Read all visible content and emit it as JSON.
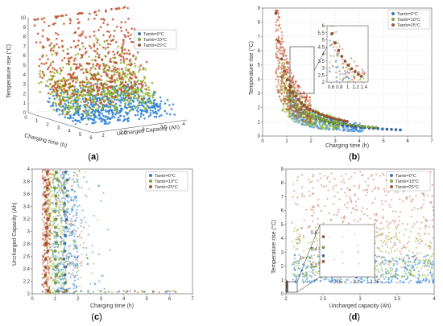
{
  "series_colors": {
    "0C": "#2a7fd4",
    "10C": "#8fb92c",
    "25C": "#c0502a"
  },
  "legend_labels": [
    "Tamb=0°C",
    "Tamb=10°C",
    "Tamb=25°C"
  ],
  "captions": {
    "a": {
      "open": "(",
      "letter": "a",
      "close": ")"
    },
    "b": {
      "open": "(",
      "letter": "b",
      "close": ")"
    },
    "c": {
      "open": "(",
      "letter": "c",
      "close": ")"
    },
    "d": {
      "open": "(",
      "letter": "d",
      "close": ")"
    }
  },
  "panel_a": {
    "zlabel": "Temperature rise (°C)",
    "xlabel": "Charging time (h)",
    "ylabel": "Uncharged Capacity (Ah)",
    "zticks": [
      "0",
      "1",
      "2",
      "3",
      "4",
      "5",
      "6",
      "7",
      "8",
      "9",
      "10"
    ],
    "xticks": [
      "0",
      "1",
      "2",
      "3",
      "4",
      "5",
      "6"
    ],
    "yticks": [
      "2",
      "2.5",
      "3",
      "3.5",
      "4"
    ]
  },
  "panel_b": {
    "xticks": [
      "0",
      "1",
      "2",
      "3",
      "4",
      "5",
      "6",
      "7"
    ],
    "yticks": [
      "0",
      "1",
      "2",
      "3",
      "4",
      "5",
      "6",
      "7",
      "8",
      "9"
    ],
    "inset_xticks": [
      "0.6",
      "0.8",
      "1",
      "1.2",
      "1.4"
    ],
    "inset_yticks": [
      "2",
      "2.5",
      "3",
      "3.5",
      "4",
      "4.5",
      "5",
      "5.5",
      "6"
    ]
  },
  "panel_c": {
    "xticks": [
      "0",
      "1",
      "2",
      "3",
      "4",
      "5",
      "6",
      "7"
    ],
    "yticks": [
      "2",
      "2.2",
      "2.4",
      "2.6",
      "2.8",
      "3",
      "3.2",
      "3.4",
      "3.6",
      "3.8",
      "4"
    ]
  },
  "panel_d": {
    "xticks": [
      "2",
      "2.5",
      "3",
      "3.5",
      "4"
    ],
    "yticks": [
      "0",
      "1",
      "2",
      "3",
      "4",
      "5",
      "6",
      "7",
      "8",
      "9"
    ],
    "inset_xticks": [
      "2.05",
      "2.1",
      "2.15"
    ],
    "inset_yticks": [
      "0.2",
      "0.4",
      "0.6"
    ]
  },
  "chart_data": [
    {
      "panel": "a",
      "type": "scatter",
      "title": "",
      "xlabel": "Charging time (h)",
      "ylabel": "Uncharged Capacity (Ah)",
      "zlabel": "Temperature rise (°C)",
      "xlim": [
        0,
        6
      ],
      "ylim": [
        2,
        4
      ],
      "zlim": [
        0,
        10
      ],
      "grid": true,
      "legend_position": "top-right",
      "series": [
        {
          "name": "Tamb=0°C",
          "x": [
            1.5,
            2,
            2.5,
            3,
            4
          ],
          "y": [
            2.5,
            3,
            3.5,
            3,
            2.5
          ],
          "z": [
            1,
            2,
            3,
            2.5,
            1.5
          ]
        },
        {
          "name": "Tamb=10°C",
          "x": [
            1,
            1.5,
            2,
            3
          ],
          "y": [
            2.5,
            3,
            3.5,
            3
          ],
          "z": [
            2,
            4,
            5,
            3.5
          ]
        },
        {
          "name": "Tamb=25°C",
          "x": [
            0.6,
            1,
            1.5,
            2
          ],
          "y": [
            2.5,
            3,
            3.5,
            3
          ],
          "z": [
            3,
            6,
            8,
            9
          ]
        }
      ]
    },
    {
      "panel": "b",
      "type": "scatter",
      "title": "",
      "xlabel": "Charging time (h)",
      "ylabel": "Temperature rise (°C)",
      "xlim": [
        0,
        7
      ],
      "ylim": [
        0,
        9
      ],
      "grid": true,
      "legend_position": "top-right",
      "series": [
        {
          "name": "Tamb=0°C",
          "x": [
            1.2,
            1.5,
            2,
            3,
            4,
            5,
            5.5
          ],
          "y": [
            2.7,
            2.0,
            1.4,
            0.8,
            0.5,
            0.35,
            0.3
          ]
        },
        {
          "name": "Tamb=10°C",
          "x": [
            0.9,
            1.1,
            1.5,
            2,
            3,
            4.5,
            6.2
          ],
          "y": [
            5,
            3.3,
            2.0,
            1.3,
            0.7,
            0.4,
            0.25
          ]
        },
        {
          "name": "Tamb=25°C",
          "x": [
            0.6,
            0.7,
            0.8,
            1,
            1.2,
            1.4
          ],
          "y": [
            8.6,
            6.5,
            4.8,
            3.2,
            2.5,
            2.0
          ]
        }
      ],
      "inset": {
        "xlim": [
          0.5,
          1.5
        ],
        "ylim": [
          2,
          6
        ]
      }
    },
    {
      "panel": "c",
      "type": "scatter",
      "title": "",
      "xlabel": "Charging time (h)",
      "ylabel": "Uncharged Capacity (Ah)",
      "xlim": [
        0,
        7
      ],
      "ylim": [
        2,
        4
      ],
      "grid": false,
      "legend_position": "top-right",
      "series": [
        {
          "name": "Tamb=0°C",
          "x": [
            1.3,
            1.4,
            1.5,
            1.6
          ],
          "y": [
            3.8,
            3.3,
            2.8,
            2.4
          ]
        },
        {
          "name": "Tamb=10°C",
          "x": [
            0.9,
            1.0,
            1.1,
            1.2
          ],
          "y": [
            3.8,
            3.3,
            2.8,
            2.4
          ]
        },
        {
          "name": "Tamb=25°C",
          "x": [
            0.55,
            0.6,
            0.65,
            0.7
          ],
          "y": [
            3.9,
            3.3,
            2.8,
            2.3
          ]
        }
      ]
    },
    {
      "panel": "d",
      "type": "scatter",
      "title": "",
      "xlabel": "Uncharged capacity (Ah)",
      "ylabel": "Temperature rise (°C)",
      "xlim": [
        2,
        4
      ],
      "ylim": [
        0,
        9
      ],
      "grid": false,
      "legend_position": "top-right",
      "series": [
        {
          "name": "Tamb=0°C",
          "x": [
            2.5,
            3,
            3.5,
            3.9
          ],
          "y": [
            1.5,
            1.8,
            2.0,
            2.2
          ]
        },
        {
          "name": "Tamb=10°C",
          "x": [
            2.5,
            3,
            3.5,
            3.9
          ],
          "y": [
            2.5,
            3.5,
            4.0,
            4.2
          ]
        },
        {
          "name": "Tamb=25°C",
          "x": [
            2.5,
            3,
            3.5,
            3.9
          ],
          "y": [
            5,
            6,
            7,
            8
          ]
        }
      ],
      "inset": {
        "xlim": [
          2.0,
          2.15
        ],
        "ylim": [
          0.2,
          0.6
        ]
      }
    }
  ]
}
